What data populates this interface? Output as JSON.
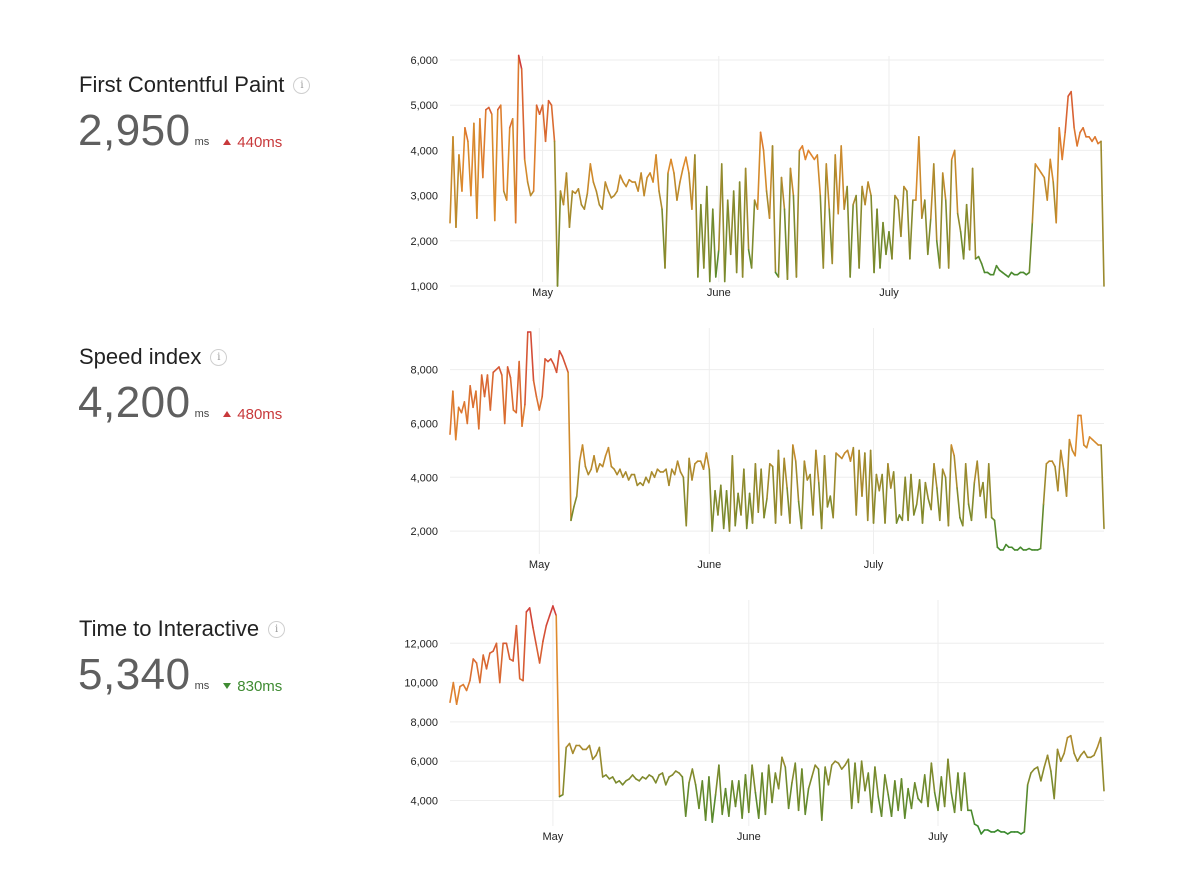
{
  "metrics": [
    {
      "title": "First Contentful Paint",
      "value": "2,950",
      "unit": "ms",
      "delta": "440ms",
      "direction": "up",
      "delta_color": "#c8393b"
    },
    {
      "title": "Speed index",
      "value": "4,200",
      "unit": "ms",
      "delta": "480ms",
      "direction": "up",
      "delta_color": "#c8393b"
    },
    {
      "title": "Time to Interactive",
      "value": "5,340",
      "unit": "ms",
      "delta": "830ms",
      "direction": "down",
      "delta_color": "#3f8b32"
    }
  ],
  "info_icon": "i",
  "colors": {
    "good": "#3a8a2e",
    "mid": "#e08a2c",
    "bad": "#d03a3a",
    "grid": "#eeeeee"
  },
  "chart_data": [
    {
      "type": "line",
      "title": "First Contentful Paint",
      "x_ticks": [
        "May",
        "June",
        "July"
      ],
      "x_tick_index": [
        31,
        90,
        147
      ],
      "y_ticks": [
        1000,
        2000,
        3000,
        4000,
        5000,
        6000
      ],
      "y_tick_labels": [
        "1,000",
        "2,000",
        "3,000",
        "4,000",
        "5,000",
        "6,000"
      ],
      "ylim": [
        1000,
        6000
      ],
      "values": [
        2400,
        4300,
        2300,
        3900,
        3100,
        4500,
        4200,
        3000,
        4600,
        2500,
        4700,
        3400,
        4900,
        4950,
        4800,
        2450,
        4900,
        5000,
        3100,
        2900,
        4500,
        4700,
        2400,
        6100,
        5800,
        3800,
        3300,
        3000,
        3100,
        5000,
        4800,
        5000,
        4200,
        5100,
        5000,
        4200,
        1000,
        3100,
        2800,
        3500,
        2300,
        3100,
        3050,
        3150,
        2800,
        2700,
        3050,
        3700,
        3300,
        3100,
        2800,
        2700,
        3300,
        3100,
        2950,
        3000,
        3100,
        3450,
        3300,
        3200,
        3350,
        3300,
        3300,
        3100,
        3500,
        3000,
        3400,
        3500,
        3300,
        3900,
        3100,
        2700,
        1400,
        3500,
        3800,
        3500,
        2900,
        3300,
        3600,
        3850,
        3500,
        2700,
        3900,
        1200,
        2800,
        1400,
        3200,
        1100,
        2700,
        1200,
        1800,
        3700,
        1100,
        2900,
        1700,
        3100,
        1300,
        3300,
        1200,
        3600,
        1800,
        1400,
        2900,
        2700,
        4400,
        4000,
        3100,
        2500,
        4100,
        1300,
        1200,
        3400,
        2700,
        1150,
        3600,
        3000,
        1200,
        4000,
        4100,
        3800,
        4000,
        3900,
        3800,
        3900,
        3000,
        1400,
        3700,
        2700,
        1500,
        3900,
        2600,
        4100,
        2700,
        3200,
        1200,
        2800,
        3000,
        1400,
        3200,
        2800,
        3300,
        3000,
        1300,
        2700,
        1400,
        2400,
        1700,
        2200,
        1600,
        3000,
        2900,
        2100,
        3200,
        3100,
        1600,
        2900,
        2900,
        4300,
        2500,
        2900,
        1700,
        2500,
        3700,
        2000,
        1400,
        3500,
        2900,
        1400,
        3800,
        4000,
        2600,
        2200,
        1600,
        2800,
        1800,
        3600,
        1600,
        1650,
        1500,
        1300,
        1300,
        1250,
        1250,
        1450,
        1350,
        1300,
        1250,
        1200,
        1300,
        1250,
        1250,
        1300,
        1300,
        1250,
        1300,
        2400,
        3700,
        3600,
        3500,
        3400,
        2900,
        3800,
        3300,
        2400,
        4500,
        3800,
        4400,
        5200,
        5300,
        4500,
        4100,
        4400,
        4500,
        4300,
        4300,
        4200,
        4300,
        4150,
        4200,
        1000
      ]
    },
    {
      "type": "line",
      "title": "Speed index",
      "x_ticks": [
        "May",
        "June",
        "July"
      ],
      "x_tick_index": [
        31,
        90,
        147
      ],
      "y_ticks": [
        2000,
        4000,
        6000,
        8000
      ],
      "y_tick_labels": [
        "2,000",
        "4,000",
        "6,000",
        "8,000"
      ],
      "ylim": [
        1000,
        9400
      ],
      "values": [
        5600,
        7200,
        5400,
        6600,
        6400,
        6800,
        6000,
        7400,
        6600,
        7200,
        5800,
        7800,
        7000,
        7800,
        6500,
        7900,
        8000,
        8100,
        7800,
        6000,
        8100,
        7700,
        6500,
        6400,
        8300,
        5900,
        6700,
        9400,
        9400,
        7600,
        7000,
        6500,
        7000,
        8400,
        8300,
        8400,
        8200,
        7900,
        8700,
        8500,
        8200,
        7900,
        2400,
        2900,
        3300,
        4600,
        5200,
        4400,
        4100,
        4300,
        4800,
        4200,
        4500,
        4400,
        4800,
        5100,
        4400,
        4300,
        4100,
        4300,
        4000,
        4200,
        3900,
        4100,
        4100,
        3700,
        3800,
        3700,
        4000,
        3800,
        4200,
        4000,
        4300,
        4200,
        4200,
        4300,
        3700,
        4300,
        4100,
        4600,
        4200,
        4000,
        2200,
        4700,
        3900,
        4500,
        4600,
        4600,
        4300,
        4900,
        4300,
        2000,
        3500,
        2600,
        3700,
        2100,
        3500,
        2000,
        4800,
        2200,
        3400,
        2600,
        4300,
        2100,
        3400,
        2300,
        4500,
        2700,
        4300,
        2500,
        3200,
        4500,
        4400,
        2300,
        5000,
        2600,
        4700,
        3600,
        2300,
        5200,
        4600,
        3100,
        2100,
        4600,
        3900,
        4100,
        2600,
        5000,
        3800,
        2100,
        4800,
        2900,
        3300,
        2500,
        4900,
        4800,
        4700,
        4900,
        5000,
        4600,
        5100,
        2600,
        5000,
        3300,
        4900,
        2400,
        5000,
        2300,
        4100,
        3500,
        4100,
        2300,
        4500,
        3600,
        4200,
        2300,
        2600,
        2400,
        4000,
        2400,
        4100,
        2600,
        3000,
        3900,
        2300,
        3800,
        3200,
        2800,
        4500,
        3600,
        2400,
        4300,
        4000,
        2200,
        5200,
        4800,
        3600,
        2500,
        2200,
        4500,
        3000,
        2400,
        3800,
        4600,
        3300,
        3800,
        2500,
        4500,
        2500,
        2400,
        1400,
        1300,
        1300,
        1500,
        1400,
        1400,
        1300,
        1300,
        1400,
        1300,
        1300,
        1350,
        1300,
        1300,
        1300,
        1350,
        3000,
        4500,
        4600,
        4600,
        4400,
        3500,
        5000,
        4300,
        3300,
        5400,
        5000,
        4800,
        6300,
        6300,
        5200,
        5100,
        5500,
        5400,
        5300,
        5200,
        5200,
        2100
      ]
    },
    {
      "type": "line",
      "title": "Time to Interactive",
      "x_ticks": [
        "May",
        "June",
        "July"
      ],
      "x_tick_index": [
        31,
        90,
        147
      ],
      "y_ticks": [
        4000,
        6000,
        8000,
        10000,
        12000
      ],
      "y_tick_labels": [
        "4,000",
        "6,000",
        "8,000",
        "10,000",
        "12,000"
      ],
      "ylim": [
        2500,
        14000
      ],
      "values": [
        9000,
        10000,
        8900,
        9800,
        9900,
        9600,
        10100,
        11200,
        11000,
        10000,
        11400,
        10700,
        11500,
        11600,
        12000,
        10000,
        12000,
        12000,
        11200,
        11100,
        12900,
        10200,
        10100,
        13600,
        13800,
        12800,
        11900,
        11000,
        12100,
        12900,
        13400,
        13900,
        13400,
        4200,
        4300,
        6700,
        6900,
        6400,
        6800,
        6800,
        6600,
        6600,
        6800,
        6100,
        6300,
        6700,
        5200,
        5300,
        5100,
        5200,
        4900,
        5000,
        4800,
        5000,
        5100,
        5300,
        5100,
        5000,
        5200,
        5100,
        5300,
        5200,
        4900,
        5300,
        5400,
        4800,
        5200,
        5300,
        5500,
        5400,
        5200,
        3200,
        4900,
        5600,
        4800,
        3600,
        5000,
        3000,
        5200,
        2900,
        4300,
        5800,
        3300,
        4600,
        3200,
        5000,
        3700,
        5000,
        3100,
        5300,
        3400,
        5800,
        4400,
        3100,
        5400,
        3300,
        5800,
        3900,
        5400,
        4600,
        6200,
        5700,
        3600,
        4900,
        5900,
        3500,
        5600,
        3300,
        4600,
        5200,
        5800,
        5600,
        3000,
        5700,
        4800,
        5800,
        6000,
        5900,
        5600,
        5800,
        6100,
        3600,
        5900,
        3900,
        6000,
        4500,
        5400,
        3400,
        5700,
        4200,
        3200,
        5300,
        4300,
        3200,
        5000,
        3500,
        5100,
        3100,
        4600,
        3600,
        4900,
        4100,
        3900,
        5300,
        3700,
        5900,
        4400,
        3500,
        5200,
        3700,
        6100,
        4400,
        3400,
        5400,
        3500,
        5400,
        3500,
        3500,
        2800,
        2700,
        2300,
        2500,
        2500,
        2400,
        2400,
        2500,
        2400,
        2400,
        2300,
        2400,
        2400,
        2400,
        2300,
        2400,
        4800,
        5400,
        5600,
        5700,
        5000,
        5700,
        6300,
        5500,
        4100,
        6600,
        6000,
        6400,
        7200,
        7300,
        6400,
        6000,
        6300,
        6500,
        6200,
        6200,
        6300,
        6700,
        7200,
        4500
      ]
    }
  ]
}
